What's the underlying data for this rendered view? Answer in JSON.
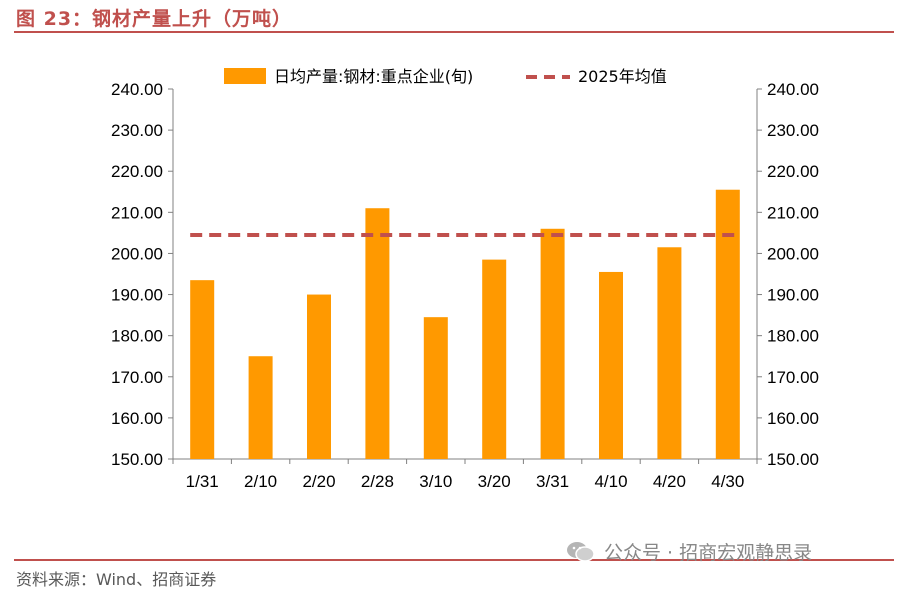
{
  "figure": {
    "title": "图 23：钢材产量上升（万吨）",
    "source": "资料来源：Wind、招商证券",
    "watermark": "公众号 · 招商宏观静思录"
  },
  "chart_data": {
    "type": "bar",
    "title": "",
    "xlabel": "",
    "ylabel": "",
    "categories": [
      "1/31",
      "2/10",
      "2/20",
      "2/28",
      "3/10",
      "3/20",
      "3/31",
      "4/10",
      "4/20",
      "4/30"
    ],
    "series": [
      {
        "name": "日均产量:钢材:重点企业(旬)",
        "type": "bar",
        "color": "#ff9900",
        "values": [
          193.5,
          175.0,
          190.0,
          211.0,
          184.5,
          198.5,
          206.0,
          195.5,
          201.5,
          215.5
        ]
      },
      {
        "name": "2025年均值",
        "type": "line",
        "style": "dashed",
        "color": "#c0504d",
        "values": [
          204.5,
          204.5,
          204.5,
          204.5,
          204.5,
          204.5,
          204.5,
          204.5,
          204.5,
          204.5
        ]
      }
    ],
    "ylim": [
      150,
      240
    ],
    "yticks": [
      "150.00",
      "160.00",
      "170.00",
      "180.00",
      "190.00",
      "200.00",
      "210.00",
      "220.00",
      "230.00",
      "240.00"
    ],
    "y2ticks": [
      "150.00",
      "160.00",
      "170.00",
      "180.00",
      "190.00",
      "200.00",
      "210.00",
      "220.00",
      "230.00",
      "240.00"
    ],
    "legend_position": "top",
    "grid": false
  }
}
